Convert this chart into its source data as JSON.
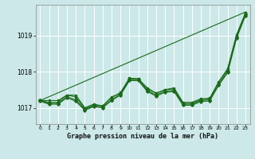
{
  "background_color": "#cce8e8",
  "plot_bg_color": "#cce8e8",
  "grid_color": "#ffffff",
  "line_color": "#1a6b1a",
  "title": "Graphe pression niveau de la mer (hPa)",
  "ylim": [
    1016.55,
    1019.85
  ],
  "xlim": [
    -0.5,
    23.5
  ],
  "yticks": [
    1017,
    1018,
    1019
  ],
  "xticks": [
    0,
    1,
    2,
    3,
    4,
    5,
    6,
    7,
    8,
    9,
    10,
    11,
    12,
    13,
    14,
    15,
    16,
    17,
    18,
    19,
    20,
    21,
    22,
    23
  ],
  "series": [
    {
      "x": [
        0,
        23
      ],
      "y": [
        1017.2,
        1019.65
      ],
      "marker": null,
      "markersize": 0,
      "linewidth": 0.8
    },
    {
      "x": [
        0,
        1,
        2,
        3,
        4,
        5,
        6,
        7,
        8,
        9,
        10,
        11,
        12,
        13,
        14,
        15,
        16,
        17,
        18,
        19,
        20,
        21,
        22,
        23
      ],
      "y": [
        1017.2,
        1017.15,
        1017.15,
        1017.35,
        1017.3,
        1016.97,
        1017.08,
        1017.05,
        1017.28,
        1017.42,
        1017.82,
        1017.8,
        1017.52,
        1017.4,
        1017.5,
        1017.52,
        1017.12,
        1017.12,
        1017.22,
        1017.27,
        1017.7,
        1018.05,
        1019.0,
        1019.62
      ],
      "marker": "s",
      "markersize": 2.0,
      "linewidth": 0.8
    },
    {
      "x": [
        0,
        1,
        2,
        3,
        4,
        5,
        6,
        7,
        8,
        9,
        10,
        11,
        12,
        13,
        14,
        15,
        16,
        17,
        18,
        19,
        20,
        21,
        22,
        23
      ],
      "y": [
        1017.2,
        1017.12,
        1017.12,
        1017.3,
        1017.22,
        1016.95,
        1017.05,
        1017.02,
        1017.22,
        1017.38,
        1017.78,
        1017.78,
        1017.48,
        1017.35,
        1017.46,
        1017.48,
        1017.1,
        1017.1,
        1017.2,
        1017.22,
        1017.65,
        1018.0,
        1018.95,
        1019.58
      ],
      "marker": "P",
      "markersize": 2.5,
      "linewidth": 0.8
    },
    {
      "x": [
        0,
        1,
        2,
        3,
        4,
        5,
        6,
        7,
        8,
        9,
        10,
        11,
        12,
        13,
        14,
        15,
        16,
        17,
        18,
        19,
        20,
        21,
        22,
        23
      ],
      "y": [
        1017.18,
        1017.1,
        1017.1,
        1017.28,
        1017.18,
        1016.93,
        1017.03,
        1017.0,
        1017.2,
        1017.35,
        1017.75,
        1017.75,
        1017.45,
        1017.32,
        1017.43,
        1017.45,
        1017.07,
        1017.07,
        1017.17,
        1017.19,
        1017.62,
        1017.97,
        1018.92,
        1019.55
      ],
      "marker": "D",
      "markersize": 1.8,
      "linewidth": 0.8
    },
    {
      "x": [
        0,
        1,
        2,
        3,
        4,
        5,
        6,
        7,
        8,
        9,
        10,
        11,
        12,
        13,
        14,
        15,
        16,
        17,
        18,
        19,
        20,
        21,
        22,
        23
      ],
      "y": [
        1017.2,
        1017.2,
        1017.2,
        1017.35,
        1017.35,
        1017.0,
        1017.1,
        1017.05,
        1017.3,
        1017.4,
        1017.8,
        1017.8,
        1017.55,
        1017.4,
        1017.5,
        1017.55,
        1017.15,
        1017.15,
        1017.25,
        1017.25,
        1017.72,
        1018.08,
        1019.02,
        1019.62
      ],
      "marker": "o",
      "markersize": 1.5,
      "linewidth": 0.8
    }
  ]
}
